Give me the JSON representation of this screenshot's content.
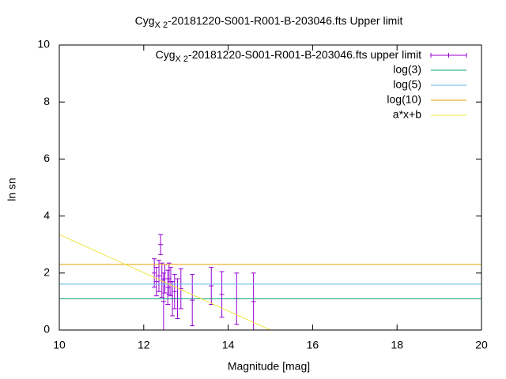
{
  "chart_data": {
    "type": "scatter",
    "title_parts": [
      "Cyg",
      "X 2",
      "-20181220-S001-R001-B-203046.fts Upper limit"
    ],
    "x_label": "Magnitude [mag]",
    "y_label": "ln sn",
    "xlim": [
      10,
      20
    ],
    "xticks": [
      10,
      12,
      14,
      16,
      18,
      20
    ],
    "ylim": [
      0,
      10
    ],
    "yticks": [
      0,
      2,
      4,
      6,
      8,
      10
    ],
    "legend": "top-right",
    "series": [
      {
        "style": "errorbars",
        "name_parts": [
          "Cyg",
          "X 2",
          "-20181220-S001-R001-B-203046.fts upper limit"
        ],
        "color": "#9400d3",
        "x": [
          12.25,
          12.3,
          12.36,
          12.4,
          12.43,
          12.47,
          12.5,
          12.57,
          12.6,
          12.64,
          12.68,
          12.73,
          12.8,
          12.88,
          13.15,
          13.6,
          13.85,
          14.2,
          14.6
        ],
        "values": [
          2.0,
          1.7,
          1.9,
          3.0,
          1.75,
          1.0,
          1.8,
          1.5,
          1.8,
          1.7,
          1.1,
          1.35,
          1.1,
          1.45,
          1.05,
          1.55,
          1.25,
          1.1,
          1.0
        ],
        "errors": [
          0.5,
          0.5,
          0.55,
          0.35,
          0.6,
          1.0,
          0.5,
          0.6,
          0.55,
          0.5,
          0.6,
          0.6,
          0.7,
          0.7,
          0.9,
          0.65,
          0.8,
          0.9,
          1.0
        ]
      },
      {
        "style": "hline",
        "name": "log(3)",
        "color": "#009e73",
        "value": 1.0986
      },
      {
        "style": "hline",
        "name": "log(5)",
        "color": "#56b4e9",
        "value": 1.6094
      },
      {
        "style": "hline",
        "name": "log(10)",
        "color": "#e69f00",
        "value": 2.3026
      },
      {
        "style": "line",
        "name": "a*x+b",
        "color": "#f0e442",
        "x": [
          10,
          15
        ],
        "values": [
          3.35,
          0
        ]
      }
    ]
  }
}
